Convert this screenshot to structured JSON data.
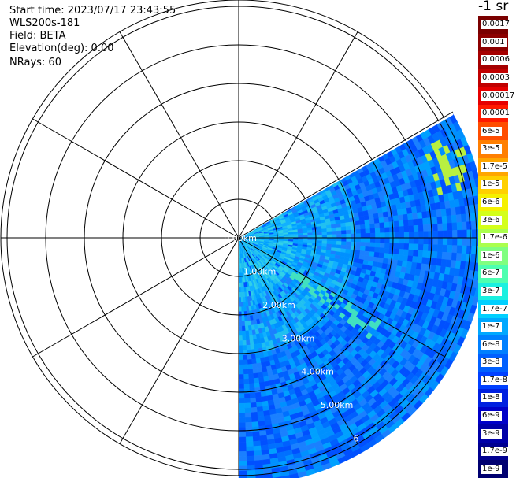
{
  "header": {
    "start_time": "Start time: 2023/07/17 23:43:55",
    "instrument": "WLS200s-181",
    "field": "Field: BETA",
    "elevation": "Elevation(deg): 0.00",
    "nrays": "NRays: 60"
  },
  "colorbar": {
    "title": "-1 sr",
    "labels": [
      "0.0017",
      "0.001",
      "0.0006",
      "0.0003",
      "0.00017",
      "0.0001",
      "6e-5",
      "3e-5",
      "1.7e-5",
      "1e-5",
      "6e-6",
      "3e-6",
      "1.7e-6",
      "1e-6",
      "6e-7",
      "3e-7",
      "1.7e-7",
      "1e-7",
      "6e-8",
      "3e-8",
      "1.7e-8",
      "1e-8",
      "6e-9",
      "3e-9",
      "1.7e-9",
      "1e-9"
    ],
    "colors": [
      "#7a0000",
      "#8c0000",
      "#a50000",
      "#c00000",
      "#e60000",
      "#ff1a00",
      "#ff4d00",
      "#ff7f00",
      "#ffa600",
      "#ffd000",
      "#f5f000",
      "#d4ff1a",
      "#aaff4d",
      "#80ff80",
      "#4dffb0",
      "#1af0e0",
      "#00d0ff",
      "#00a8ff",
      "#0080ff",
      "#0060ff",
      "#0040ff",
      "#0020e0",
      "#0000c8",
      "#0000a8",
      "#000090",
      "#000070"
    ]
  },
  "chart_data": {
    "type": "heatmap",
    "subtype": "ppi-polar",
    "field": "BETA",
    "units": "sr-1",
    "range_rings": [
      {
        "range_km": 0,
        "label": "0.00km"
      },
      {
        "range_km": 1,
        "label": "1.00km"
      },
      {
        "range_km": 2,
        "label": "2.00km"
      },
      {
        "range_km": 3,
        "label": "3.00km"
      },
      {
        "range_km": 4,
        "label": "4.00km"
      },
      {
        "range_km": 5,
        "label": "5.00km"
      },
      {
        "range_km": 6,
        "label": "6"
      }
    ],
    "max_range_km": 6.5,
    "azimuth_sector_deg": [
      60,
      180
    ],
    "spoke_spacing_deg": 30,
    "scale": "log",
    "vmin": 1e-09,
    "vmax": 0.0017
  }
}
